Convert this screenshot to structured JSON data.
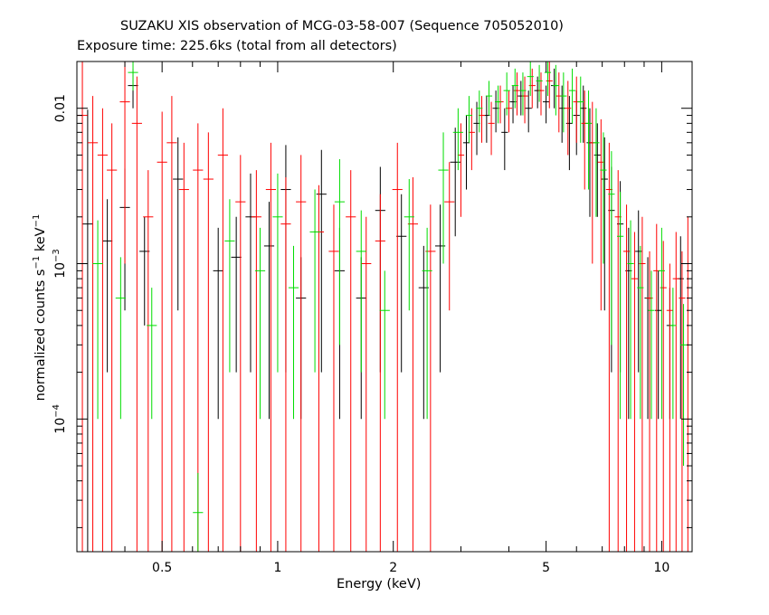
{
  "chart_data": {
    "type": "scatter",
    "title": "SUZAKU XIS observation of MCG-03-58-007 (Sequence 705052010)",
    "subtitle": "Exposure time: 225.6ks (total from all detectors)",
    "xlabel": "Energy (keV)",
    "ylabel": {
      "prefix": "normalized counts s",
      "sup1": "−1",
      "middle": " keV",
      "sup2": "−1"
    },
    "x_scale": "log",
    "y_scale": "log",
    "xlim": [
      0.3,
      12
    ],
    "ylim": [
      1.4e-05,
      0.02
    ],
    "x_ticks": [
      {
        "value": 0.5,
        "label": "0.5"
      },
      {
        "value": 1,
        "label": "1"
      },
      {
        "value": 2,
        "label": "2"
      },
      {
        "value": 5,
        "label": "5"
      },
      {
        "value": 10,
        "label": "10"
      }
    ],
    "y_ticks": [
      {
        "value": 0.0001,
        "base": "10",
        "exp": "−4"
      },
      {
        "value": 0.001,
        "base": "10",
        "exp": "−3"
      },
      {
        "value": 0.01,
        "label": "0.01"
      }
    ],
    "grid": false,
    "colors": {
      "detector_1": "#000000",
      "detector_2": "#ff0000",
      "detector_3": "#00dd00"
    },
    "series": [
      {
        "color": "#000000",
        "points": [
          [
            0.32,
            0.0018,
            0.008
          ],
          [
            0.36,
            0.0014,
            0.0012
          ],
          [
            0.4,
            0.0023,
            0.0018
          ],
          [
            0.42,
            0.014,
            0.004
          ],
          [
            0.45,
            0.0012,
            0.0008
          ],
          [
            0.55,
            0.0035,
            0.003
          ],
          [
            0.7,
            0.0009,
            0.0008
          ],
          [
            0.78,
            0.0011,
            0.0009
          ],
          [
            0.85,
            0.002,
            0.0018
          ],
          [
            0.95,
            0.0013,
            0.0012
          ],
          [
            1.05,
            0.003,
            0.0028
          ],
          [
            1.15,
            0.0006,
            0.0005
          ],
          [
            1.3,
            0.0028,
            0.0026
          ],
          [
            1.45,
            0.0009,
            0.0008
          ],
          [
            1.65,
            0.0006,
            0.0005
          ],
          [
            1.85,
            0.0022,
            0.002
          ],
          [
            2.1,
            0.0015,
            0.0013
          ],
          [
            2.4,
            0.0007,
            0.0006
          ],
          [
            2.65,
            0.0013,
            0.0011
          ],
          [
            2.9,
            0.0045,
            0.003
          ],
          [
            3.1,
            0.006,
            0.003
          ],
          [
            3.3,
            0.008,
            0.003
          ],
          [
            3.5,
            0.009,
            0.003
          ],
          [
            3.7,
            0.01,
            0.003
          ],
          [
            3.9,
            0.007,
            0.003
          ],
          [
            4.1,
            0.011,
            0.003
          ],
          [
            4.3,
            0.012,
            0.003
          ],
          [
            4.5,
            0.01,
            0.003
          ],
          [
            4.75,
            0.013,
            0.003
          ],
          [
            5.0,
            0.011,
            0.003
          ],
          [
            5.25,
            0.014,
            0.004
          ],
          [
            5.5,
            0.01,
            0.004
          ],
          [
            5.75,
            0.008,
            0.004
          ],
          [
            6.0,
            0.009,
            0.004
          ],
          [
            6.25,
            0.01,
            0.004
          ],
          [
            6.5,
            0.006,
            0.004
          ],
          [
            6.8,
            0.005,
            0.003
          ],
          [
            7.1,
            0.0035,
            0.003
          ],
          [
            7.4,
            0.0022,
            0.002
          ],
          [
            7.8,
            0.0018,
            0.0016
          ],
          [
            8.2,
            0.0009,
            0.0008
          ],
          [
            8.7,
            0.0012,
            0.001
          ],
          [
            9.2,
            0.0006,
            0.0005
          ],
          [
            9.8,
            0.0005,
            0.0004
          ],
          [
            10.5,
            0.0004,
            0.0003
          ],
          [
            11.2,
            0.0008,
            0.0007
          ]
        ]
      },
      {
        "color": "#ff0000",
        "points": [
          [
            0.31,
            0.009,
            0.012
          ],
          [
            0.33,
            0.006,
            0.006
          ],
          [
            0.35,
            0.005,
            0.005
          ],
          [
            0.37,
            0.004,
            0.004
          ],
          [
            0.4,
            0.011,
            0.01
          ],
          [
            0.43,
            0.008,
            0.008
          ],
          [
            0.46,
            0.002,
            0.002
          ],
          [
            0.5,
            0.0045,
            0.005
          ],
          [
            0.53,
            0.006,
            0.006
          ],
          [
            0.57,
            0.003,
            0.003
          ],
          [
            0.62,
            0.004,
            0.004
          ],
          [
            0.66,
            0.0035,
            0.0035
          ],
          [
            0.72,
            0.005,
            0.005
          ],
          [
            0.8,
            0.0025,
            0.0025
          ],
          [
            0.88,
            0.002,
            0.002
          ],
          [
            0.96,
            0.003,
            0.003
          ],
          [
            1.05,
            0.0018,
            0.0018
          ],
          [
            1.15,
            0.0025,
            0.0025
          ],
          [
            1.28,
            0.0016,
            0.0016
          ],
          [
            1.4,
            0.0012,
            0.0012
          ],
          [
            1.55,
            0.002,
            0.002
          ],
          [
            1.7,
            0.001,
            0.001
          ],
          [
            1.85,
            0.0014,
            0.0014
          ],
          [
            2.05,
            0.003,
            0.003
          ],
          [
            2.25,
            0.0018,
            0.0018
          ],
          [
            2.5,
            0.0012,
            0.0012
          ],
          [
            2.8,
            0.0025,
            0.002
          ],
          [
            3.0,
            0.005,
            0.003
          ],
          [
            3.2,
            0.007,
            0.003
          ],
          [
            3.4,
            0.009,
            0.003
          ],
          [
            3.6,
            0.008,
            0.003
          ],
          [
            3.8,
            0.011,
            0.003
          ],
          [
            4.0,
            0.01,
            0.003
          ],
          [
            4.2,
            0.013,
            0.004
          ],
          [
            4.4,
            0.012,
            0.004
          ],
          [
            4.6,
            0.014,
            0.004
          ],
          [
            4.85,
            0.013,
            0.004
          ],
          [
            5.1,
            0.015,
            0.005
          ],
          [
            5.4,
            0.012,
            0.005
          ],
          [
            5.7,
            0.01,
            0.005
          ],
          [
            6.0,
            0.011,
            0.005
          ],
          [
            6.3,
            0.008,
            0.005
          ],
          [
            6.6,
            0.006,
            0.005
          ],
          [
            6.95,
            0.0045,
            0.004
          ],
          [
            7.3,
            0.003,
            0.003
          ],
          [
            7.7,
            0.002,
            0.002
          ],
          [
            8.1,
            0.0012,
            0.0012
          ],
          [
            8.5,
            0.0008,
            0.0008
          ],
          [
            8.9,
            0.001,
            0.001
          ],
          [
            9.3,
            0.0006,
            0.0006
          ],
          [
            9.7,
            0.0009,
            0.0009
          ],
          [
            10.1,
            0.0007,
            0.0007
          ],
          [
            10.5,
            0.0005,
            0.0005
          ],
          [
            10.9,
            0.0008,
            0.0008
          ],
          [
            11.3,
            0.0006,
            0.0006
          ],
          [
            11.7,
            0.001,
            0.001
          ]
        ]
      },
      {
        "color": "#00dd00",
        "points": [
          [
            0.34,
            0.001,
            0.0009
          ],
          [
            0.39,
            0.0006,
            0.0005
          ],
          [
            0.42,
            0.017,
            0.004
          ],
          [
            0.47,
            0.0004,
            0.0003
          ],
          [
            0.62,
            2.5e-05,
            2e-05
          ],
          [
            0.75,
            0.0014,
            0.0012
          ],
          [
            0.9,
            0.0009,
            0.0008
          ],
          [
            1.0,
            0.002,
            0.0018
          ],
          [
            1.1,
            0.0007,
            0.0006
          ],
          [
            1.25,
            0.0016,
            0.0014
          ],
          [
            1.45,
            0.0025,
            0.0022
          ],
          [
            1.65,
            0.0012,
            0.001
          ],
          [
            1.9,
            0.0005,
            0.0004
          ],
          [
            2.2,
            0.002,
            0.0015
          ],
          [
            2.45,
            0.0009,
            0.0008
          ],
          [
            2.7,
            0.004,
            0.003
          ],
          [
            2.95,
            0.007,
            0.003
          ],
          [
            3.15,
            0.009,
            0.003
          ],
          [
            3.35,
            0.01,
            0.003
          ],
          [
            3.55,
            0.012,
            0.003
          ],
          [
            3.75,
            0.011,
            0.003
          ],
          [
            3.95,
            0.013,
            0.004
          ],
          [
            4.15,
            0.014,
            0.004
          ],
          [
            4.35,
            0.013,
            0.004
          ],
          [
            4.55,
            0.016,
            0.004
          ],
          [
            4.8,
            0.015,
            0.004
          ],
          [
            5.05,
            0.017,
            0.005
          ],
          [
            5.3,
            0.014,
            0.005
          ],
          [
            5.55,
            0.012,
            0.005
          ],
          [
            5.85,
            0.013,
            0.005
          ],
          [
            6.15,
            0.011,
            0.005
          ],
          [
            6.45,
            0.008,
            0.005
          ],
          [
            6.75,
            0.006,
            0.004
          ],
          [
            7.05,
            0.004,
            0.003
          ],
          [
            7.4,
            0.0028,
            0.0025
          ],
          [
            7.8,
            0.0015,
            0.0014
          ],
          [
            8.3,
            0.001,
            0.0009
          ],
          [
            8.8,
            0.0007,
            0.0006
          ],
          [
            9.4,
            0.0005,
            0.0004
          ],
          [
            10.0,
            0.0009,
            0.0008
          ],
          [
            10.7,
            0.0004,
            0.0003
          ],
          [
            11.4,
            0.0003,
            0.00025
          ]
        ]
      }
    ]
  }
}
